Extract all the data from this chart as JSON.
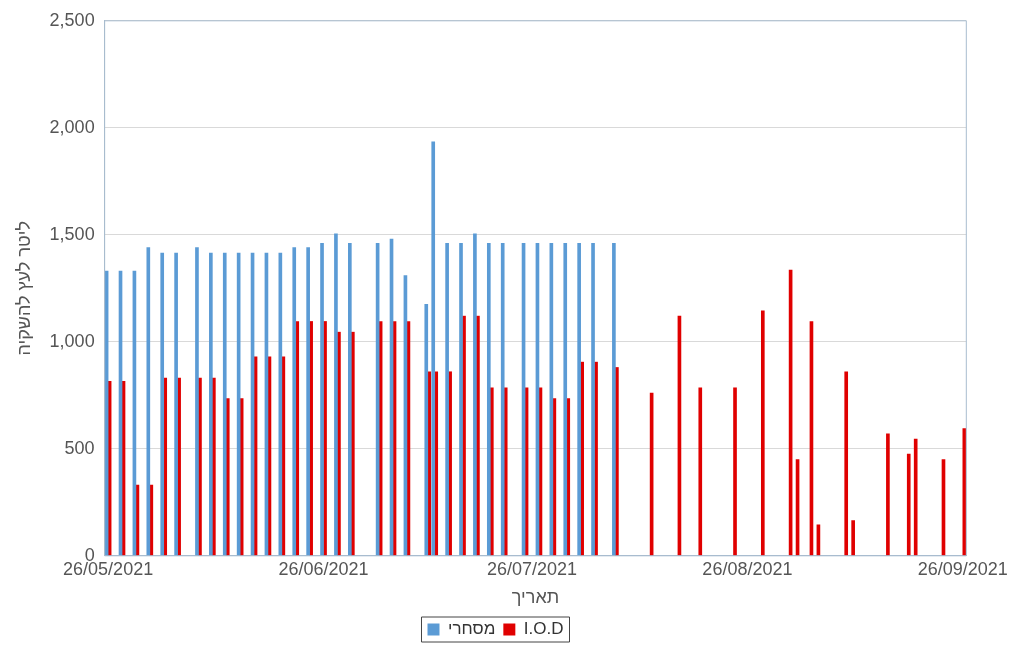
{
  "chart_data": {
    "type": "bar",
    "xlabel": "תאריך",
    "ylabel": "ליטר לעץ להשקיה",
    "xlim": [
      "2021-05-25T12:00",
      "2021-09-26T12:00"
    ],
    "xticks": [
      {
        "value": "2021-05-26",
        "label": "26/05/2021"
      },
      {
        "value": "2021-06-26",
        "label": "26/06/2021"
      },
      {
        "value": "2021-07-26",
        "label": "26/07/2021"
      },
      {
        "value": "2021-08-26",
        "label": "26/08/2021"
      },
      {
        "value": "2021-09-26",
        "label": "26/09/2021"
      }
    ],
    "ylim": [
      0,
      2500
    ],
    "yticks": [
      0,
      {
        "value": 500,
        "label": "500"
      },
      {
        "value": 1000,
        "label": "1,000"
      },
      {
        "value": 1500,
        "label": "1,500"
      },
      {
        "value": 2000,
        "label": "2,000"
      },
      {
        "value": 2500,
        "label": "2,500"
      }
    ],
    "grid": "y",
    "legend": "bottom",
    "series": [
      {
        "name": "מסחרי",
        "color": "#5b9bd5",
        "x": [
          "2021-05-26",
          "2021-05-28",
          "2021-05-30",
          "2021-06-01",
          "2021-06-03",
          "2021-06-05",
          "2021-06-08",
          "2021-06-10",
          "2021-06-12",
          "2021-06-14",
          "2021-06-16",
          "2021-06-18",
          "2021-06-20",
          "2021-06-22",
          "2021-06-24",
          "2021-06-26",
          "2021-06-28",
          "2021-06-30",
          "2021-07-04",
          "2021-07-06",
          "2021-07-08",
          "2021-07-11",
          "2021-07-12",
          "2021-07-14",
          "2021-07-16",
          "2021-07-18",
          "2021-07-20",
          "2021-07-22",
          "2021-07-25",
          "2021-07-27",
          "2021-07-29",
          "2021-07-31",
          "2021-08-02",
          "2021-08-04",
          "2021-08-07"
        ],
        "values": [
          1330,
          1330,
          1330,
          1440,
          1415,
          1415,
          1440,
          1415,
          1415,
          1415,
          1415,
          1415,
          1415,
          1440,
          1440,
          1460,
          1505,
          1460,
          1460,
          1480,
          1310,
          1175,
          1935,
          1460,
          1460,
          1505,
          1460,
          1460,
          1460,
          1460,
          1460,
          1460,
          1460,
          1460,
          1460
        ]
      },
      {
        "name": "I.O.D",
        "color": "#e00000",
        "x": [
          "2021-05-26",
          "2021-05-28",
          "2021-05-30",
          "2021-06-01",
          "2021-06-03",
          "2021-06-05",
          "2021-06-08",
          "2021-06-10",
          "2021-06-12",
          "2021-06-14",
          "2021-06-16",
          "2021-06-18",
          "2021-06-20",
          "2021-06-22",
          "2021-06-24",
          "2021-06-26",
          "2021-06-28",
          "2021-06-30",
          "2021-07-04",
          "2021-07-06",
          "2021-07-08",
          "2021-07-11",
          "2021-07-12",
          "2021-07-14",
          "2021-07-16",
          "2021-07-18",
          "2021-07-20",
          "2021-07-22",
          "2021-07-25",
          "2021-07-27",
          "2021-07-29",
          "2021-07-31",
          "2021-08-02",
          "2021-08-04",
          "2021-08-07",
          "2021-08-12",
          "2021-08-16",
          "2021-08-19",
          "2021-08-24",
          "2021-08-28",
          "2021-09-01",
          "2021-09-02",
          "2021-09-04",
          "2021-09-05",
          "2021-09-09",
          "2021-09-10",
          "2021-09-15",
          "2021-09-18",
          "2021-09-19",
          "2021-09-23",
          "2021-09-26"
        ],
        "values": [
          815,
          815,
          330,
          330,
          830,
          830,
          830,
          830,
          735,
          735,
          930,
          930,
          930,
          1095,
          1095,
          1095,
          1045,
          1045,
          1095,
          1095,
          1095,
          860,
          860,
          860,
          1120,
          1120,
          785,
          785,
          785,
          785,
          735,
          735,
          905,
          905,
          880,
          760,
          1120,
          785,
          785,
          1145,
          1335,
          450,
          1095,
          145,
          860,
          165,
          570,
          475,
          545,
          450,
          595
        ]
      }
    ]
  }
}
